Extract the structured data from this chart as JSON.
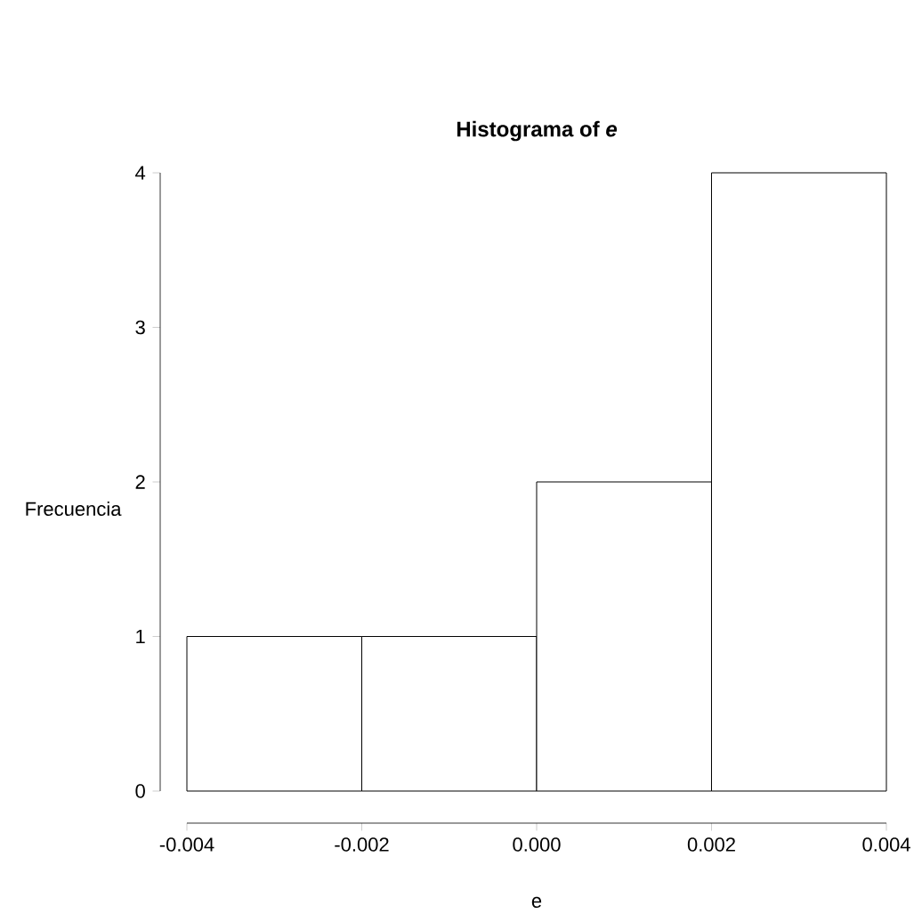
{
  "chart_data": {
    "type": "histogram",
    "title": "Histograma of *e*",
    "xlabel": "e",
    "ylabel": "Frecuencia",
    "bins": [
      -0.004,
      -0.002,
      0,
      0.002,
      0.004
    ],
    "values": [
      1,
      1,
      2,
      4
    ],
    "color": "#ffffff",
    "xlim": [
      -0.004,
      0.004
    ],
    "xticks": [
      {
        "value": -0.004,
        "label": "-0.004"
      },
      {
        "value": -0.002,
        "label": "-0.002"
      },
      {
        "value": 0,
        "label": "0.000"
      },
      {
        "value": 0.002,
        "label": "0.002"
      },
      {
        "value": 0.004,
        "label": "0.004"
      }
    ],
    "ylim": [
      0,
      4
    ],
    "yticks": [
      0,
      1,
      2,
      3,
      4
    ],
    "grid": false
  }
}
